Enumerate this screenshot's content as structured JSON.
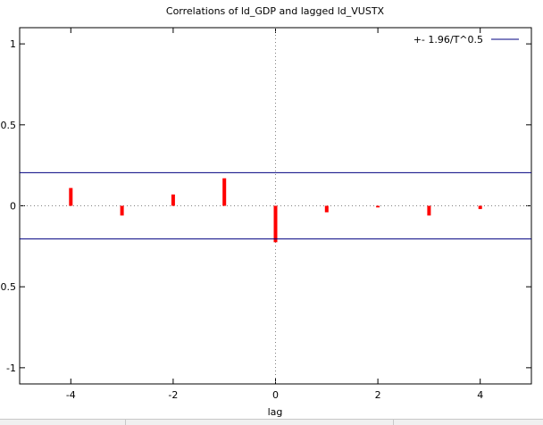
{
  "chart_data": {
    "type": "bar",
    "title": "Correlations of ld_GDP and lagged ld_VUSTX",
    "xlabel": "lag",
    "ylabel": "",
    "xlim": [
      -5,
      5
    ],
    "ylim": [
      -1.1,
      1.1
    ],
    "x_ticks": [
      -4,
      -2,
      0,
      2,
      4
    ],
    "x_tick_labels": [
      "-4",
      "-2",
      "0",
      "2",
      "4"
    ],
    "y_ticks": [
      1,
      0.5,
      0,
      -0.5,
      -1
    ],
    "y_tick_labels": [
      "1",
      "0.5",
      "0",
      "-0.5",
      "-1"
    ],
    "lags": [
      -4,
      -3,
      -2,
      -1,
      0,
      1,
      2,
      3,
      4
    ],
    "values": [
      0.11,
      -0.06,
      0.07,
      0.17,
      -0.225,
      -0.04,
      -0.01,
      -0.06,
      -0.02
    ],
    "bar_color": "#ff0000",
    "band": {
      "value": 0.205,
      "label": "+- 1.96/T^0.5",
      "color": "#000080"
    },
    "legend_position": "top-right",
    "grid": "zero lines dotted"
  }
}
